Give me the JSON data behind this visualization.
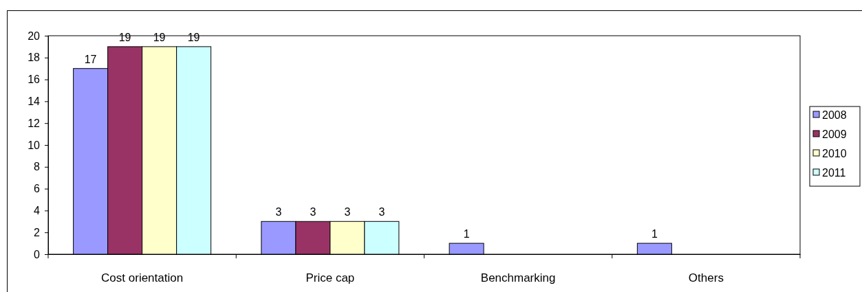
{
  "chart_data": {
    "type": "bar",
    "categories": [
      "Cost orientation",
      "Price cap",
      "Benchmarking",
      "Others"
    ],
    "series": [
      {
        "name": "2008",
        "color": "#9999ff",
        "values": [
          17,
          3,
          1,
          1
        ]
      },
      {
        "name": "2009",
        "color": "#993366",
        "values": [
          19,
          3,
          null,
          null
        ]
      },
      {
        "name": "2010",
        "color": "#ffffcc",
        "values": [
          19,
          3,
          null,
          null
        ]
      },
      {
        "name": "2011",
        "color": "#ccffff",
        "values": [
          19,
          3,
          null,
          null
        ]
      }
    ],
    "ylim": [
      0,
      20
    ],
    "yticks": [
      0,
      2,
      4,
      6,
      8,
      10,
      12,
      14,
      16,
      18,
      20
    ],
    "data_labels": true,
    "legend": "right",
    "grid": false
  }
}
